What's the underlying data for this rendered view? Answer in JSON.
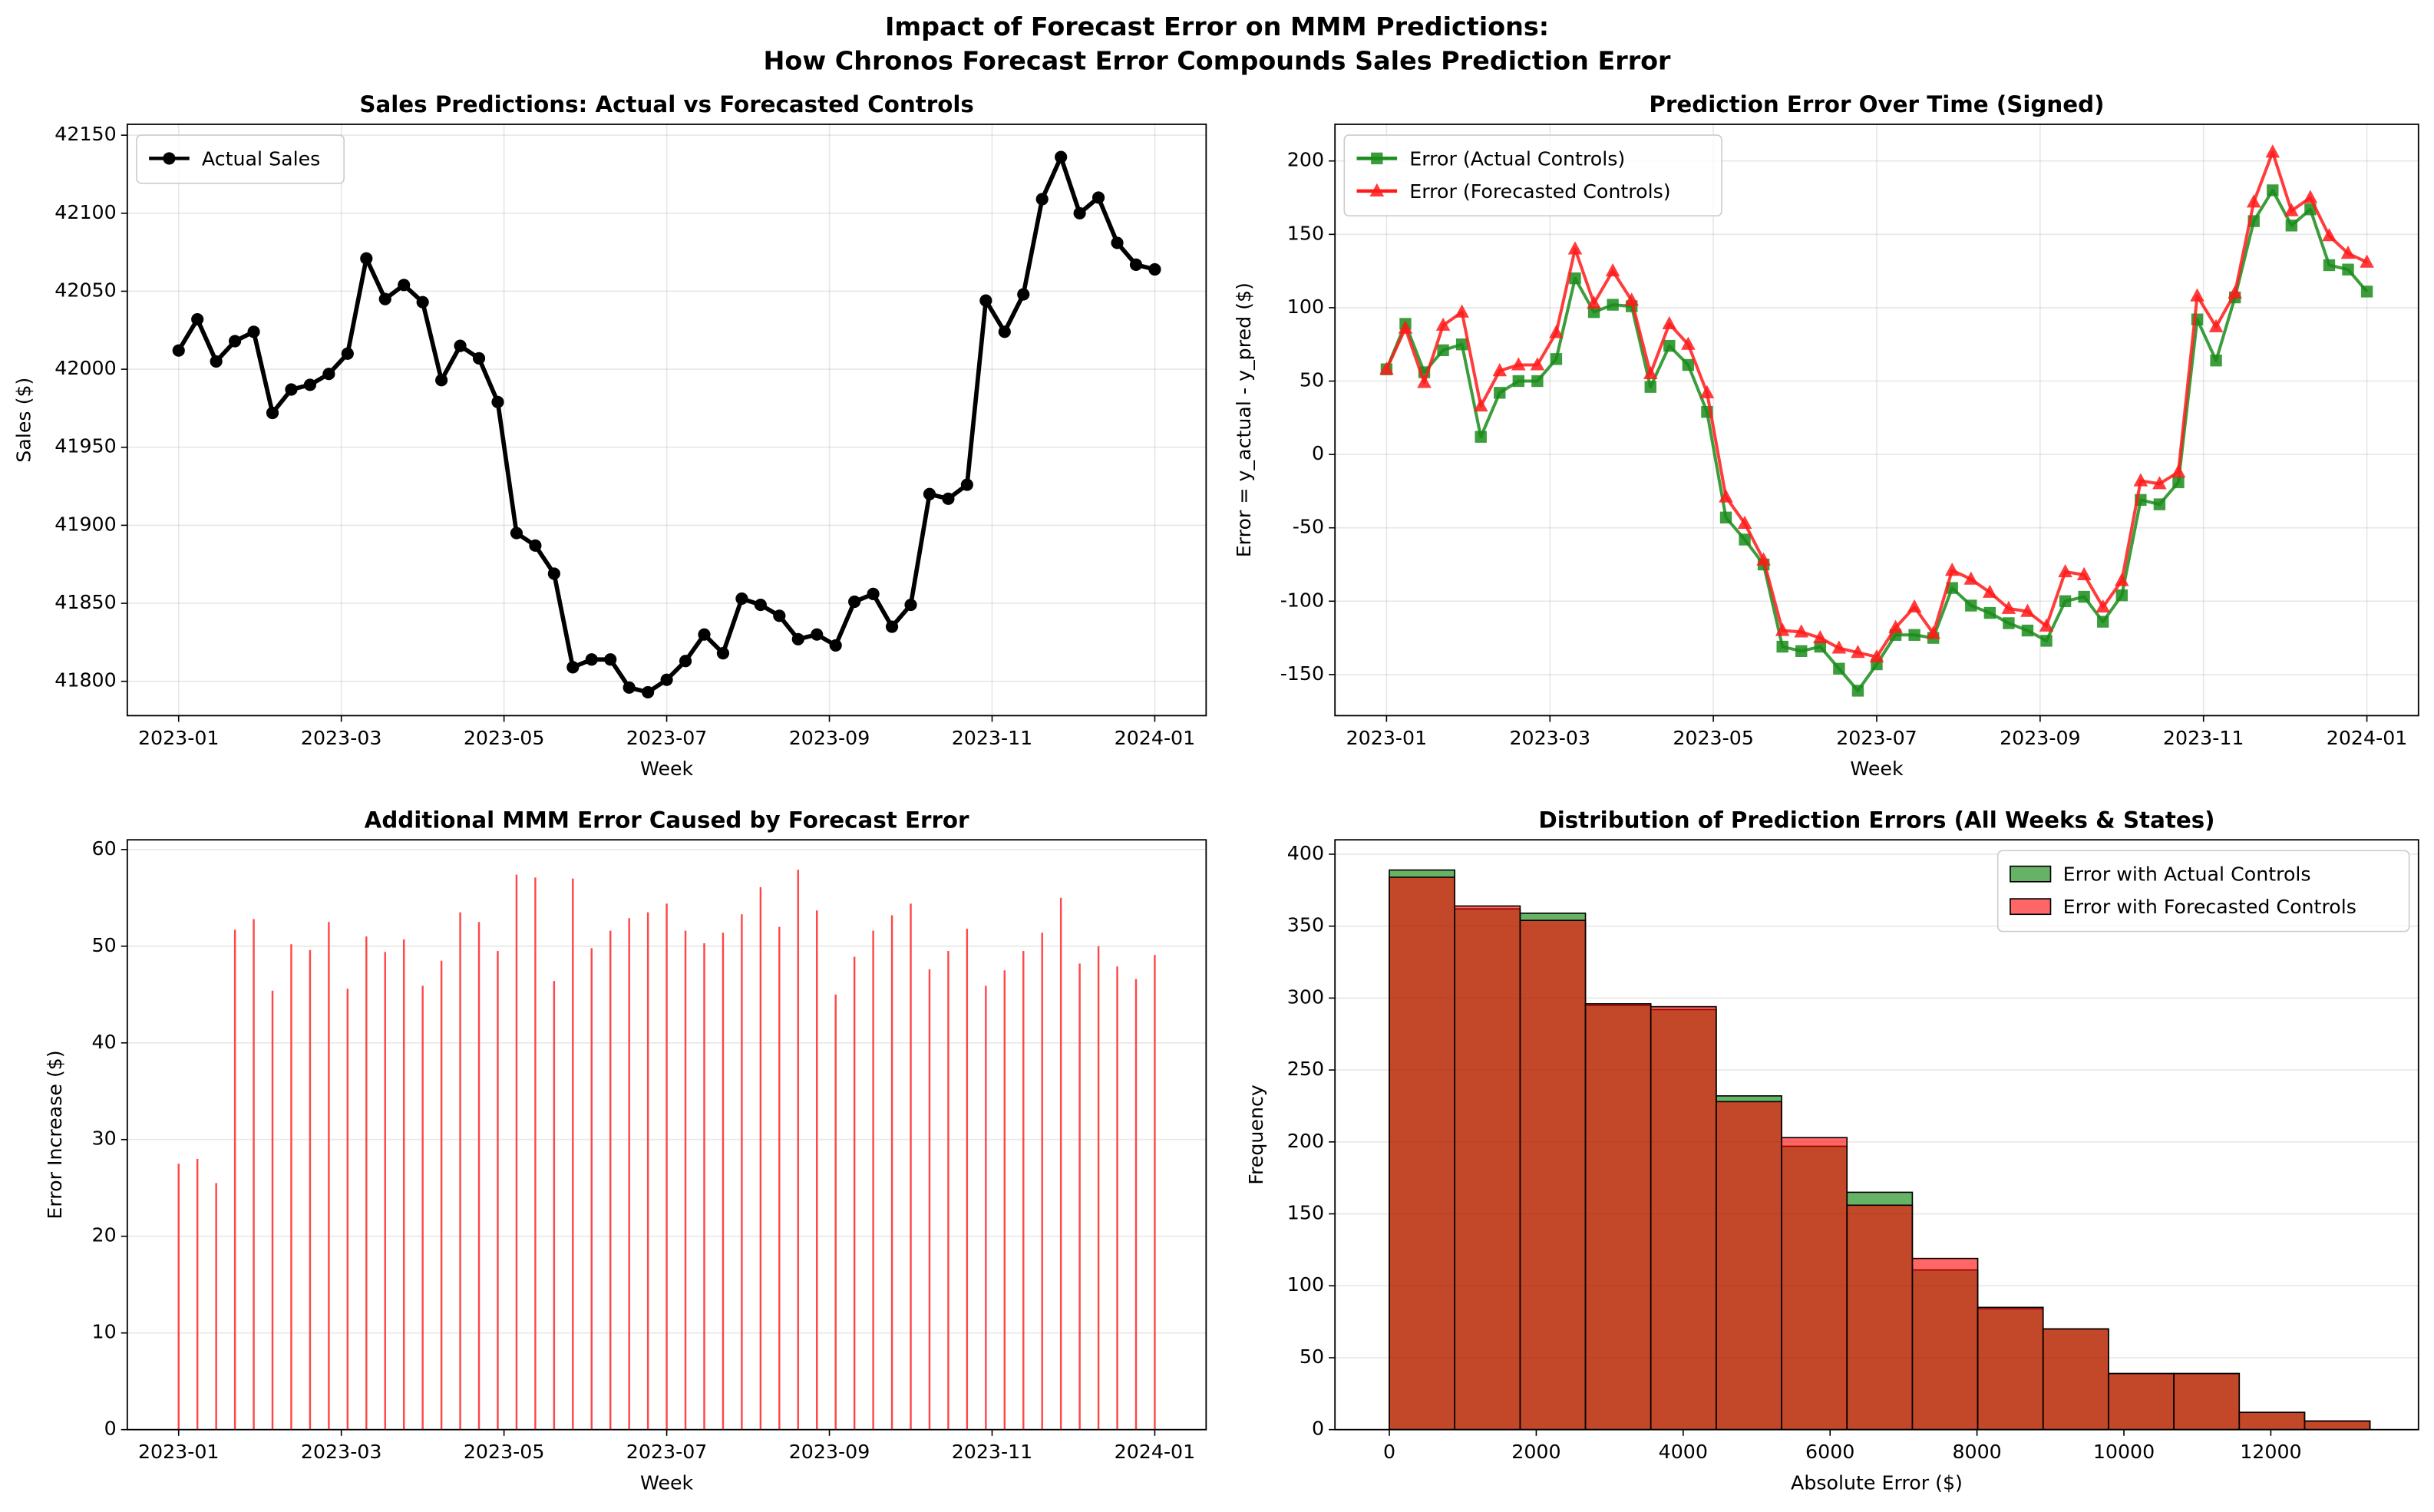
{
  "title": [
    "Impact of Forecast Error on MMM Predictions:",
    "How Chronos Forecast Error Compounds Sales Prediction Error"
  ],
  "chart_data": [
    {
      "type": "line",
      "title": "Sales Predictions: Actual vs Forecasted Controls",
      "xlabel": "Week",
      "ylabel": "Sales ($)",
      "xticks": [
        "2023-01",
        "2023-03",
        "2023-05",
        "2023-07",
        "2023-09",
        "2023-11",
        "2024-01"
      ],
      "ylim": [
        41778,
        42157
      ],
      "yticks": [
        41800,
        41850,
        41900,
        41950,
        42000,
        42050,
        42100,
        42150
      ],
      "grid": "both",
      "legend": "upper left",
      "series": [
        {
          "name": "Actual Sales",
          "color": "#000000",
          "marker": "circle",
          "values": [
            42012,
            42032,
            42005,
            42018,
            42024,
            41972,
            41987,
            41990,
            41997,
            42010,
            42071,
            42045,
            42054,
            42043,
            41993,
            42015,
            42007,
            41979,
            41895,
            41887,
            41869,
            41809,
            41814,
            41814,
            41796,
            41793,
            41801,
            41813,
            41830,
            41818,
            41853,
            41849,
            41842,
            41827,
            41830,
            41823,
            41851,
            41856,
            41835,
            41849,
            41920,
            41917,
            41926,
            42044,
            42024,
            42048,
            42109,
            42136,
            42100,
            42110,
            42081,
            42067,
            42064
          ]
        }
      ]
    },
    {
      "type": "line",
      "title": "Prediction Error Over Time (Signed)",
      "xlabel": "Week",
      "ylabel": "Error = y_actual - y_pred ($)",
      "xticks": [
        "2023-01",
        "2023-03",
        "2023-05",
        "2023-07",
        "2023-09",
        "2023-11",
        "2024-01"
      ],
      "ylim": [
        -178,
        225
      ],
      "yticks": [
        -150,
        -100,
        -50,
        0,
        50,
        100,
        150,
        200
      ],
      "grid": "both",
      "legend": "upper left",
      "series": [
        {
          "name": "Error (Actual Controls)",
          "color": "#1a8c1a",
          "marker": "square",
          "values": [
            58,
            89,
            56,
            71,
            75,
            12,
            42,
            50,
            50,
            65,
            120,
            97,
            102,
            101,
            46,
            74,
            61,
            29,
            -43,
            -58,
            -75,
            -131,
            -134,
            -131,
            -146,
            -161,
            -143,
            -123,
            -123,
            -125,
            -91,
            -103,
            -108,
            -115,
            -120,
            -127,
            -100,
            -97,
            -114,
            -96,
            -31,
            -34,
            -19,
            92,
            64,
            107,
            159,
            180,
            156,
            167,
            129,
            126,
            111
          ]
        },
        {
          "name": "Error (Forecasted Controls)",
          "color": "#ff1a1a",
          "marker": "triangle",
          "values": [
            58,
            86,
            49,
            88,
            97,
            33,
            57,
            61,
            61,
            83,
            140,
            103,
            125,
            105,
            55,
            89,
            75,
            42,
            -29,
            -47,
            -72,
            -120,
            -121,
            -125,
            -132,
            -135,
            -138,
            -118,
            -104,
            -122,
            -79,
            -85,
            -94,
            -105,
            -107,
            -117,
            -80,
            -82,
            -104,
            -86,
            -18,
            -20,
            -12,
            108,
            87,
            110,
            172,
            206,
            166,
            175,
            149,
            137,
            131
          ]
        }
      ]
    },
    {
      "type": "bar",
      "title": "Additional MMM Error Caused by Forecast Error",
      "xlabel": "Week",
      "ylabel": "Error Increase ($)",
      "xticks": [
        "2023-01",
        "2023-03",
        "2023-05",
        "2023-07",
        "2023-09",
        "2023-11",
        "2024-01"
      ],
      "ylim": [
        0,
        61
      ],
      "yticks": [
        0,
        10,
        20,
        30,
        40,
        50,
        60
      ],
      "grid": "y",
      "color": "#ff3333",
      "values": [
        27.5,
        28,
        25.5,
        51.7,
        52.8,
        45.4,
        50.2,
        49.6,
        52.5,
        45.6,
        51,
        49.4,
        50.7,
        45.9,
        48.5,
        53.5,
        52.5,
        49.5,
        57.4,
        57.1,
        46.4,
        57,
        49.8,
        51.6,
        52.9,
        53.5,
        54.4,
        51.6,
        50.3,
        51.4,
        53.3,
        56.1,
        52,
        57.9,
        53.7,
        45,
        48.9,
        51.6,
        53.2,
        54.4,
        47.6,
        49.5,
        51.8,
        45.9,
        47.5,
        49.5,
        51.4,
        55,
        48.2,
        50,
        47.9,
        46.6,
        49.1
      ]
    },
    {
      "type": "histogram",
      "title": "Distribution of Prediction Errors (All Weeks & States)",
      "xlabel": "Absolute Error ($)",
      "ylabel": "Frequency",
      "bins": [
        0,
        890,
        1780,
        2670,
        3560,
        4450,
        5340,
        6230,
        7120,
        8010,
        8900,
        9790,
        10680,
        11570,
        12460,
        13350
      ],
      "xlim": [
        -740,
        14010
      ],
      "xticks": [
        0,
        2000,
        4000,
        6000,
        8000,
        10000,
        12000
      ],
      "ylim": [
        0,
        410
      ],
      "yticks": [
        0,
        50,
        100,
        150,
        200,
        250,
        300,
        350,
        400
      ],
      "grid": "y",
      "legend": "upper right",
      "series": [
        {
          "name": "Error with Actual Controls",
          "color": "#008000",
          "values": [
            389,
            362,
            359,
            295,
            292,
            232,
            197,
            165,
            111,
            84,
            70,
            39,
            39,
            12,
            6
          ]
        },
        {
          "name": "Error with Forecasted Controls",
          "color": "#ff0000",
          "values": [
            384,
            364,
            354,
            296,
            294,
            228,
            203,
            156,
            119,
            85,
            70,
            39,
            39,
            12,
            6
          ]
        }
      ]
    }
  ]
}
